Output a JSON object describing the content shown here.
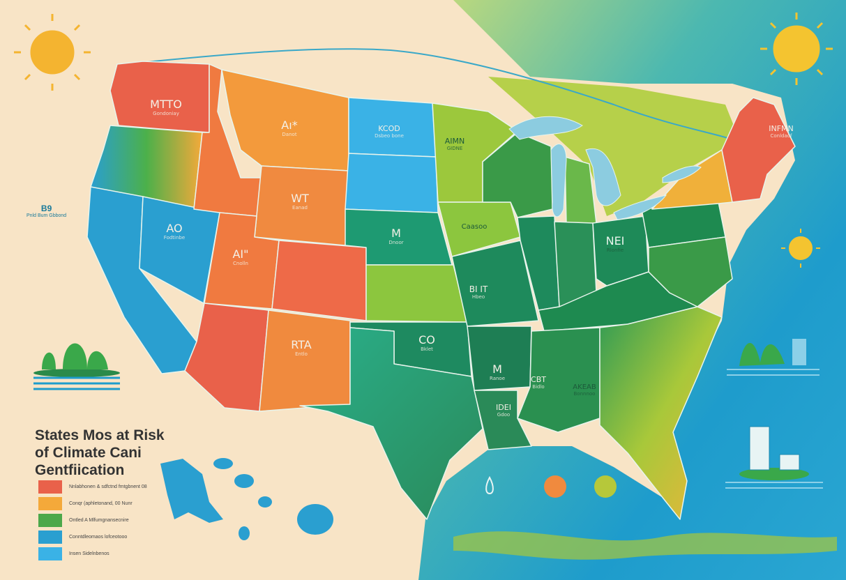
{
  "title": {
    "line1": "States Mos at Risk",
    "line2": "of Climate Cani",
    "line3": "Gentfiication"
  },
  "colors": {
    "background": "#f8e4c6",
    "ocean": "#1e9ccc",
    "highest_risk": "#e9614a",
    "high_risk": "#f4a93a",
    "moderate_risk": "#4ca84a",
    "low_risk": "#2a9fd0",
    "lowest_risk": "#3ab2e6"
  },
  "legend": [
    {
      "label": "Nnlabhonen & sdfctnd fmtgbnent 08",
      "color": "#e9614a"
    },
    {
      "label": "Conqr (aphletonand, 00 Nunr",
      "color": "#f4a93a"
    },
    {
      "label": "Ontled A Mlfumgnansecnire",
      "color": "#4ca84a"
    },
    {
      "label": "Conntdleomaos lofceotooo",
      "color": "#2a9fd0"
    },
    {
      "label": "Insen Sidelnbenos",
      "color": "#3ab2e6"
    }
  ],
  "side_note": {
    "value": "B9",
    "text": "Pnld Bum Gbbond"
  },
  "state_labels": [
    {
      "name": "MTTO",
      "sub": "Gondoniay"
    },
    {
      "name": "Aı*",
      "sub": "Danot"
    },
    {
      "name": "KCOD",
      "sub": "Dsbeo bone"
    },
    {
      "name": "WT",
      "sub": "Eanad"
    },
    {
      "name": "AO",
      "sub": "Fodtinbe"
    },
    {
      "name": "AI\"",
      "sub": "Cnolln"
    },
    {
      "name": "M",
      "sub": "Dnoor"
    },
    {
      "name": "RTA",
      "sub": "Entlo"
    },
    {
      "name": "AIMN",
      "sub": "GIDNE"
    },
    {
      "name": "Caasoo",
      "sub": ""
    },
    {
      "name": "BI IT",
      "sub": "Hbeo"
    },
    {
      "name": "CO",
      "sub": "Bklet"
    },
    {
      "name": "M",
      "sub": "Ranoe"
    },
    {
      "name": "NEI",
      "sub": "Rlonfie"
    },
    {
      "name": "CBT",
      "sub": "Bidlo"
    },
    {
      "name": "AKEAB",
      "sub": "Bonnnoo"
    },
    {
      "name": "IDEI",
      "sub": "Gdoo"
    },
    {
      "name": "INFMN",
      "sub": "Conldaof"
    }
  ]
}
